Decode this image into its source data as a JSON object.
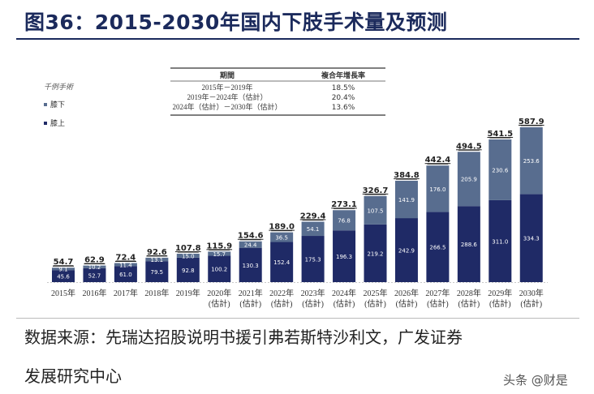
{
  "title": "图36：2015-2030年国内下肢手术量及预测",
  "source_line1": "数据来源：先瑞达招股说明书援引弗若斯特沙利文，广发证券",
  "source_line2": "发展研究中心",
  "watermark": "头条 @财是",
  "chart_data": {
    "type": "bar",
    "stacked": true,
    "unit_label": "千例手術",
    "categories": [
      "2015年",
      "2016年",
      "2017年",
      "2018年",
      "2019年",
      "2020年\n(估計)",
      "2021年\n(估計)",
      "2022年\n(估計)",
      "2023年\n(估計)",
      "2024年\n(估計)",
      "2025年\n(估計)",
      "2026年\n(估計)",
      "2027年\n(估計)",
      "2028年\n(估計)",
      "2029年\n(估計)",
      "2030年\n(估計)"
    ],
    "series": [
      {
        "name": "膝上",
        "color": "#1f2a66",
        "values": [
          45.6,
          52.7,
          61.0,
          79.5,
          92.8,
          100.2,
          130.3,
          152.4,
          175.3,
          196.3,
          219.2,
          242.9,
          266.5,
          288.6,
          311.0,
          334.3
        ]
      },
      {
        "name": "膝下",
        "color": "#586d8f",
        "values": [
          9.1,
          10.2,
          11.4,
          13.1,
          15.0,
          15.7,
          24.4,
          36.5,
          54.1,
          76.8,
          107.5,
          141.9,
          176.0,
          205.9,
          230.6,
          253.6
        ]
      }
    ],
    "totals": [
      "54.7",
      "62.9",
      "72.4",
      "92.6",
      "107.8",
      "115.9",
      "154.6",
      "189.0",
      "229.4",
      "273.1",
      "326.7",
      "384.8",
      "442.4",
      "494.5",
      "541.5",
      "587.9"
    ],
    "legend_order": [
      "膝下",
      "膝上"
    ],
    "legend_placement": "top-left",
    "grid": false,
    "cagr_table": {
      "headers": [
        "期間",
        "複合年增長率"
      ],
      "rows": [
        [
          "2015年－2019年",
          "18.5%"
        ],
        [
          "2019年－2024年（估計）",
          "20.4%"
        ],
        [
          "2024年（估計）－2030年（估計）",
          "13.6%"
        ]
      ]
    }
  }
}
